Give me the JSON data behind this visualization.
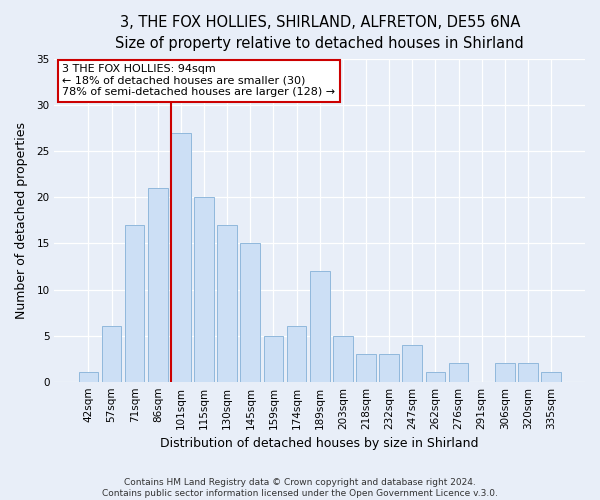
{
  "title": "3, THE FOX HOLLIES, SHIRLAND, ALFRETON, DE55 6NA",
  "subtitle": "Size of property relative to detached houses in Shirland",
  "xlabel": "Distribution of detached houses by size in Shirland",
  "ylabel": "Number of detached properties",
  "bar_labels": [
    "42sqm",
    "57sqm",
    "71sqm",
    "86sqm",
    "101sqm",
    "115sqm",
    "130sqm",
    "145sqm",
    "159sqm",
    "174sqm",
    "189sqm",
    "203sqm",
    "218sqm",
    "232sqm",
    "247sqm",
    "262sqm",
    "276sqm",
    "291sqm",
    "306sqm",
    "320sqm",
    "335sqm"
  ],
  "bar_heights": [
    1,
    6,
    17,
    21,
    27,
    20,
    17,
    15,
    5,
    6,
    12,
    5,
    3,
    3,
    4,
    1,
    2,
    0,
    2,
    2,
    1
  ],
  "bar_color": "#ccdff5",
  "bar_edge_color": "#90b8dc",
  "vline_color": "#cc0000",
  "vline_pos": 3.57,
  "annotation_lines": [
    "3 THE FOX HOLLIES: 94sqm",
    "← 18% of detached houses are smaller (30)",
    "78% of semi-detached houses are larger (128) →"
  ],
  "annotation_box_color": "#ffffff",
  "annotation_box_edge": "#cc0000",
  "ylim": [
    0,
    35
  ],
  "yticks": [
    0,
    5,
    10,
    15,
    20,
    25,
    30,
    35
  ],
  "footer_line1": "Contains HM Land Registry data © Crown copyright and database right 2024.",
  "footer_line2": "Contains public sector information licensed under the Open Government Licence v.3.0.",
  "bg_color": "#e8eef8",
  "plot_bg_color": "#e8eef8",
  "title_fontsize": 10.5,
  "subtitle_fontsize": 9.5,
  "xlabel_fontsize": 9,
  "ylabel_fontsize": 9,
  "tick_fontsize": 7.5,
  "annotation_fontsize": 8,
  "footer_fontsize": 6.5
}
